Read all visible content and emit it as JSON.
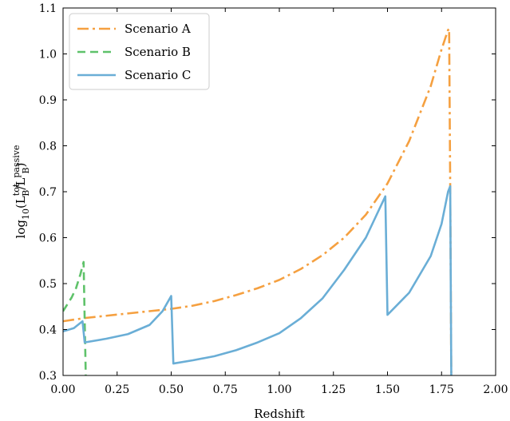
{
  "chart_data": {
    "type": "line",
    "xlabel": "Redshift",
    "ylabel": {
      "prefix": "log",
      "prefix_sub": "10",
      "open": "(L",
      "sup1": "tot",
      "sub1": "B",
      "slash": "/L",
      "sup2": "passive",
      "sub2": "B",
      "close": ")"
    },
    "xlim": [
      0.0,
      2.0
    ],
    "ylim": [
      0.3,
      1.1
    ],
    "xticks": [
      "0.00",
      "0.25",
      "0.50",
      "0.75",
      "1.00",
      "1.25",
      "1.50",
      "1.75",
      "2.00"
    ],
    "yticks": [
      "0.3",
      "0.4",
      "0.5",
      "0.6",
      "0.7",
      "0.8",
      "0.9",
      "1.0",
      "1.1"
    ],
    "grid": false,
    "legend_position": "top-left",
    "series": [
      {
        "name": "Scenario A",
        "color": "#f5a040",
        "dash": "dashdot",
        "points": [
          [
            0.0,
            0.418
          ],
          [
            0.1,
            0.425
          ],
          [
            0.2,
            0.43
          ],
          [
            0.3,
            0.435
          ],
          [
            0.4,
            0.44
          ],
          [
            0.5,
            0.445
          ],
          [
            0.6,
            0.452
          ],
          [
            0.7,
            0.462
          ],
          [
            0.8,
            0.475
          ],
          [
            0.9,
            0.49
          ],
          [
            1.0,
            0.508
          ],
          [
            1.1,
            0.532
          ],
          [
            1.2,
            0.562
          ],
          [
            1.3,
            0.6
          ],
          [
            1.4,
            0.65
          ],
          [
            1.5,
            0.718
          ],
          [
            1.6,
            0.81
          ],
          [
            1.7,
            0.93
          ],
          [
            1.75,
            1.01
          ],
          [
            1.78,
            1.052
          ],
          [
            1.785,
            1.055
          ],
          [
            1.79,
            0.71
          ],
          [
            1.795,
            0.3
          ]
        ]
      },
      {
        "name": "Scenario B",
        "color": "#5fc26a",
        "dash": "dashed",
        "points": [
          [
            0.0,
            0.44
          ],
          [
            0.02,
            0.455
          ],
          [
            0.04,
            0.47
          ],
          [
            0.06,
            0.49
          ],
          [
            0.08,
            0.52
          ],
          [
            0.095,
            0.547
          ],
          [
            0.1,
            0.42
          ],
          [
            0.105,
            0.3
          ]
        ]
      },
      {
        "name": "Scenario C",
        "color": "#6aaed6",
        "dash": "solid",
        "points": [
          [
            0.0,
            0.396
          ],
          [
            0.05,
            0.403
          ],
          [
            0.09,
            0.418
          ],
          [
            0.1,
            0.372
          ],
          [
            0.2,
            0.38
          ],
          [
            0.3,
            0.39
          ],
          [
            0.4,
            0.41
          ],
          [
            0.46,
            0.44
          ],
          [
            0.5,
            0.473
          ],
          [
            0.51,
            0.326
          ],
          [
            0.6,
            0.333
          ],
          [
            0.7,
            0.342
          ],
          [
            0.8,
            0.355
          ],
          [
            0.9,
            0.372
          ],
          [
            1.0,
            0.392
          ],
          [
            1.1,
            0.425
          ],
          [
            1.2,
            0.468
          ],
          [
            1.3,
            0.53
          ],
          [
            1.4,
            0.6
          ],
          [
            1.45,
            0.65
          ],
          [
            1.49,
            0.69
          ],
          [
            1.5,
            0.432
          ],
          [
            1.6,
            0.48
          ],
          [
            1.7,
            0.56
          ],
          [
            1.75,
            0.63
          ],
          [
            1.78,
            0.7
          ],
          [
            1.79,
            0.712
          ],
          [
            1.795,
            0.3
          ]
        ]
      }
    ]
  }
}
